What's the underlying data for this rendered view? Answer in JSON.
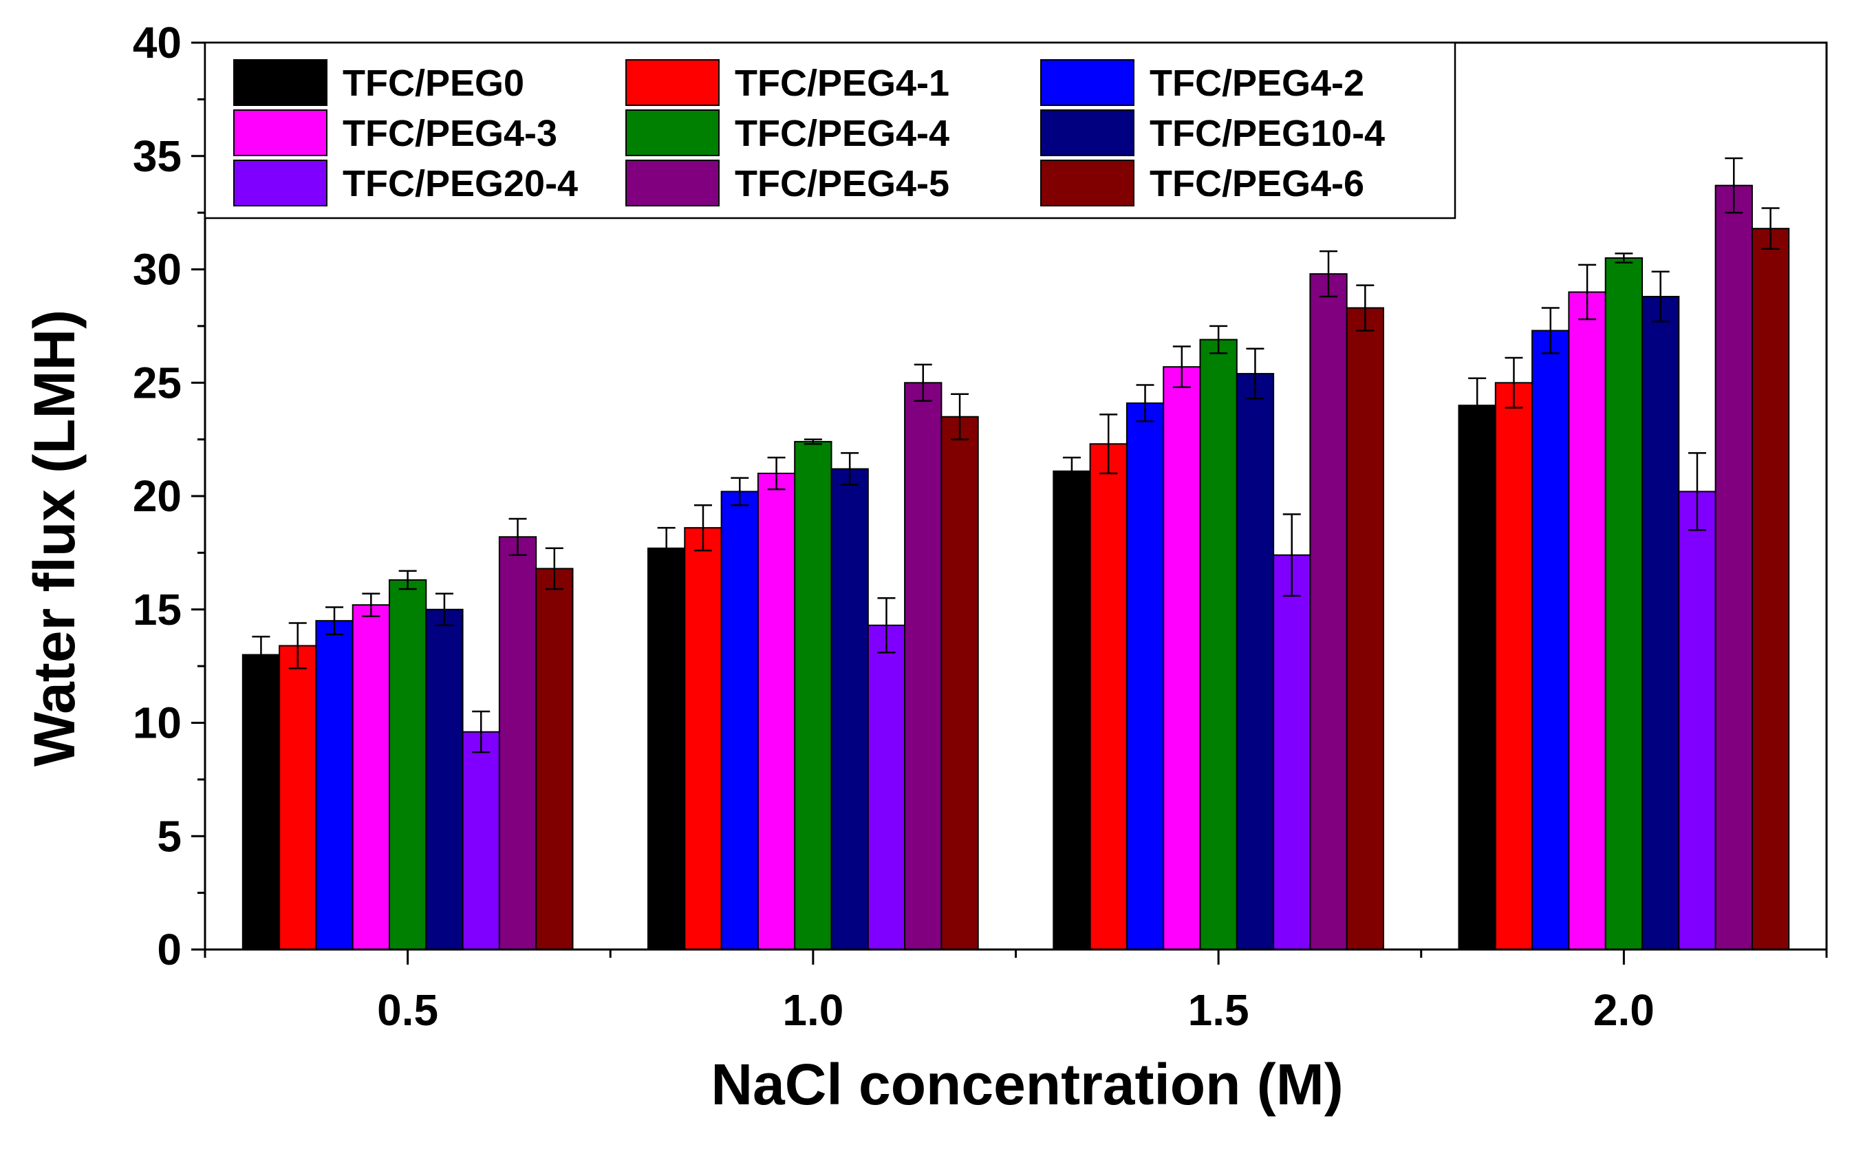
{
  "chart_data": {
    "type": "bar",
    "title": "",
    "xlabel": "NaCl concentration (M)",
    "ylabel": "Water flux (LMH)",
    "ylim": [
      0,
      40
    ],
    "y_ticks": [
      "0",
      "5",
      "10",
      "15",
      "20",
      "25",
      "30",
      "35",
      "40"
    ],
    "categories": [
      "0.5",
      "1.0",
      "1.5",
      "2.0"
    ],
    "legend_position": "top-left",
    "error_bars": true,
    "series": [
      {
        "name": "TFC/PEG0",
        "color": "#000000",
        "values": [
          13.0,
          17.7,
          21.1,
          24.0
        ],
        "errors": [
          0.8,
          0.9,
          0.6,
          1.2
        ]
      },
      {
        "name": "TFC/PEG4-1",
        "color": "#ff0000",
        "values": [
          13.4,
          18.6,
          22.3,
          25.0
        ],
        "errors": [
          1.0,
          1.0,
          1.3,
          1.1
        ]
      },
      {
        "name": "TFC/PEG4-2",
        "color": "#0000ff",
        "values": [
          14.5,
          20.2,
          24.1,
          27.3
        ],
        "errors": [
          0.6,
          0.6,
          0.8,
          1.0
        ]
      },
      {
        "name": "TFC/PEG4-3",
        "color": "#ff00ff",
        "values": [
          15.2,
          21.0,
          25.7,
          29.0
        ],
        "errors": [
          0.5,
          0.7,
          0.9,
          1.2
        ]
      },
      {
        "name": "TFC/PEG4-4",
        "color": "#008000",
        "values": [
          16.3,
          22.4,
          26.9,
          30.5
        ],
        "errors": [
          0.4,
          0.1,
          0.6,
          0.2
        ]
      },
      {
        "name": "TFC/PEG10-4",
        "color": "#000080",
        "values": [
          15.0,
          21.2,
          25.4,
          28.8
        ],
        "errors": [
          0.7,
          0.7,
          1.1,
          1.1
        ]
      },
      {
        "name": "TFC/PEG20-4",
        "color": "#8000ff",
        "values": [
          9.6,
          14.3,
          17.4,
          20.2
        ],
        "errors": [
          0.9,
          1.2,
          1.8,
          1.7
        ]
      },
      {
        "name": "TFC/PEG4-5",
        "color": "#800080",
        "values": [
          18.2,
          25.0,
          29.8,
          33.7
        ],
        "errors": [
          0.8,
          0.8,
          1.0,
          1.2
        ]
      },
      {
        "name": "TFC/PEG4-6",
        "color": "#800000",
        "values": [
          16.8,
          23.5,
          28.3,
          31.8
        ],
        "errors": [
          0.9,
          1.0,
          1.0,
          0.9
        ]
      }
    ]
  }
}
